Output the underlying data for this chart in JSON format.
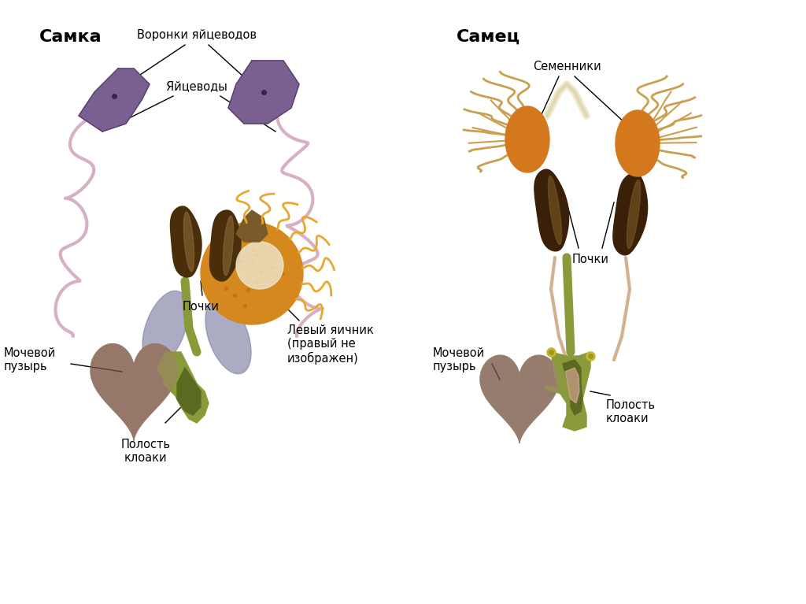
{
  "background_color": "#ffffff",
  "fig_width": 10.24,
  "fig_height": 7.67,
  "left_title": "Самка",
  "right_title": "Самец",
  "left_labels": {
    "voronki": "Воронки яйцеводов",
    "yaicevody": "Яйцеводы",
    "pochki": "Почки",
    "mochevoy": "Мочевой\nпузырь",
    "polost": "Полость\nклоаки",
    "levyy": "Левый яичник\n(правый не\nизображен)"
  },
  "right_labels": {
    "semenniki": "Семенники",
    "pochki": "Почки",
    "mochevoy": "Мочевой\nпузырь",
    "polost": "Полость\nклоаки"
  },
  "colors": {
    "kidney_dark": "#4a2e0a",
    "kidney_light": "#8a6a3a",
    "ovary": "#d4881e",
    "funnel": "#7a6090",
    "funnel_dark": "#5a4070",
    "oviduct": "#d4a8c0",
    "cloaca_green": "#8a9a3a",
    "cloaca_dark": "#5a6a20",
    "bladder_dark": "#8a7060",
    "bladder_light": "#a08070",
    "testis_orange": "#d4781e",
    "vas": "#c8a050",
    "connect": "#d4b090",
    "text_color": "#000000"
  }
}
